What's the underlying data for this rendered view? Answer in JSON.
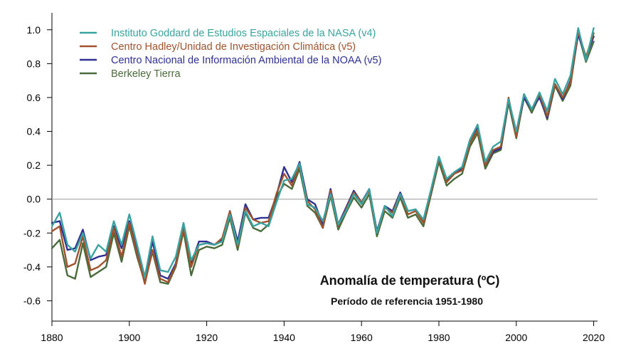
{
  "chart_data": {
    "type": "line",
    "title": "Anomalía de temperatura (ºC)",
    "subtitle": "Período de referencia 1951-1980",
    "xlabel": "",
    "ylabel": "",
    "xlim": [
      1880,
      2021
    ],
    "ylim": [
      -0.72,
      1.1
    ],
    "x_ticks": [
      1880,
      1900,
      1920,
      1940,
      1960,
      1980,
      2000,
      2020
    ],
    "y_ticks": [
      -0.6,
      -0.4,
      -0.2,
      0.0,
      0.2,
      0.4,
      0.6,
      0.8,
      1.0
    ],
    "y_tick_labels": [
      "-0.6",
      "-0.4",
      "-0.2",
      "0.0",
      "0.2",
      "0.4",
      "0.6",
      "0.8",
      "1.0"
    ],
    "zero_line": true,
    "grid": false,
    "legend_position": "top-left",
    "anchor_years": [
      1880,
      1882,
      1884,
      1886,
      1888,
      1890,
      1892,
      1894,
      1896,
      1898,
      1900,
      1902,
      1904,
      1906,
      1908,
      1910,
      1912,
      1914,
      1916,
      1918,
      1920,
      1922,
      1924,
      1926,
      1928,
      1930,
      1932,
      1934,
      1936,
      1938,
      1940,
      1942,
      1944,
      1946,
      1948,
      1950,
      1952,
      1954,
      1956,
      1958,
      1960,
      1962,
      1964,
      1966,
      1968,
      1970,
      1972,
      1974,
      1976,
      1978,
      1980,
      1982,
      1984,
      1986,
      1988,
      1990,
      1992,
      1994,
      1996,
      1998,
      2000,
      2002,
      2004,
      2006,
      2008,
      2010,
      2012,
      2014,
      2016,
      2018,
      2020
    ],
    "series": [
      {
        "name": "Instituto Goddard de Estudios Espaciales de la NASA (v4)",
        "color": "#3aa3a0",
        "values": [
          -0.16,
          -0.08,
          -0.27,
          -0.31,
          -0.2,
          -0.35,
          -0.27,
          -0.31,
          -0.13,
          -0.27,
          -0.09,
          -0.27,
          -0.46,
          -0.22,
          -0.42,
          -0.43,
          -0.34,
          -0.14,
          -0.36,
          -0.27,
          -0.26,
          -0.27,
          -0.25,
          -0.09,
          -0.27,
          -0.07,
          -0.16,
          -0.14,
          -0.16,
          -0.02,
          0.11,
          0.12,
          0.21,
          -0.03,
          -0.05,
          -0.13,
          0.03,
          -0.15,
          -0.07,
          0.03,
          -0.03,
          0.06,
          -0.2,
          -0.04,
          -0.1,
          0.03,
          -0.07,
          -0.06,
          -0.12,
          0.06,
          0.25,
          0.12,
          0.16,
          0.19,
          0.35,
          0.44,
          0.22,
          0.31,
          0.34,
          0.59,
          0.4,
          0.62,
          0.53,
          0.63,
          0.52,
          0.71,
          0.62,
          0.73,
          1.01,
          0.82,
          1.01
        ]
      },
      {
        "name": "Centro Hadley/Unidad de Investigación Climática (v5)",
        "color": "#a0522d",
        "values": [
          -0.19,
          -0.16,
          -0.4,
          -0.38,
          -0.22,
          -0.42,
          -0.4,
          -0.36,
          -0.17,
          -0.34,
          -0.14,
          -0.32,
          -0.5,
          -0.3,
          -0.47,
          -0.49,
          -0.39,
          -0.17,
          -0.4,
          -0.27,
          -0.26,
          -0.27,
          -0.23,
          -0.07,
          -0.28,
          -0.05,
          -0.12,
          -0.14,
          -0.13,
          0.03,
          0.15,
          0.08,
          0.2,
          -0.01,
          -0.06,
          -0.17,
          0.05,
          -0.16,
          -0.06,
          0.04,
          -0.02,
          0.05,
          -0.2,
          -0.05,
          -0.08,
          0.03,
          -0.09,
          -0.07,
          -0.14,
          0.05,
          0.24,
          0.1,
          0.15,
          0.17,
          0.33,
          0.41,
          0.2,
          0.29,
          0.31,
          0.6,
          0.37,
          0.62,
          0.53,
          0.62,
          0.49,
          0.68,
          0.6,
          0.69,
          0.99,
          0.84,
          0.98
        ]
      },
      {
        "name": "Centro Nacional de Información Ambiental de la NOAA (v5)",
        "color": "#2e3192",
        "values": [
          -0.14,
          -0.13,
          -0.3,
          -0.29,
          -0.18,
          -0.36,
          -0.34,
          -0.33,
          -0.16,
          -0.29,
          -0.13,
          -0.29,
          -0.46,
          -0.25,
          -0.45,
          -0.47,
          -0.38,
          -0.15,
          -0.38,
          -0.25,
          -0.25,
          -0.27,
          -0.24,
          -0.07,
          -0.25,
          -0.03,
          -0.12,
          -0.11,
          -0.11,
          0.02,
          0.19,
          0.1,
          0.22,
          0.0,
          -0.03,
          -0.15,
          0.06,
          -0.15,
          -0.05,
          0.05,
          -0.02,
          0.06,
          -0.19,
          -0.04,
          -0.07,
          0.04,
          -0.07,
          -0.06,
          -0.13,
          0.05,
          0.25,
          0.11,
          0.15,
          0.18,
          0.33,
          0.42,
          0.2,
          0.28,
          0.3,
          0.59,
          0.38,
          0.6,
          0.53,
          0.6,
          0.48,
          0.68,
          0.59,
          0.7,
          0.97,
          0.84,
          0.96
        ]
      },
      {
        "name": "Berkeley Tierra",
        "color": "#4a6b3a",
        "values": [
          -0.29,
          -0.24,
          -0.45,
          -0.47,
          -0.26,
          -0.46,
          -0.43,
          -0.4,
          -0.2,
          -0.37,
          -0.16,
          -0.34,
          -0.49,
          -0.31,
          -0.49,
          -0.5,
          -0.4,
          -0.19,
          -0.45,
          -0.3,
          -0.28,
          -0.29,
          -0.27,
          -0.11,
          -0.3,
          -0.08,
          -0.17,
          -0.19,
          -0.15,
          0.01,
          0.09,
          0.06,
          0.18,
          -0.04,
          -0.08,
          -0.17,
          0.02,
          -0.18,
          -0.08,
          0.01,
          -0.05,
          0.03,
          -0.22,
          -0.07,
          -0.11,
          0.01,
          -0.11,
          -0.09,
          -0.16,
          0.03,
          0.22,
          0.08,
          0.12,
          0.15,
          0.31,
          0.39,
          0.18,
          0.27,
          0.29,
          0.57,
          0.36,
          0.6,
          0.51,
          0.61,
          0.47,
          0.67,
          0.58,
          0.67,
          0.98,
          0.81,
          0.93
        ]
      }
    ]
  }
}
